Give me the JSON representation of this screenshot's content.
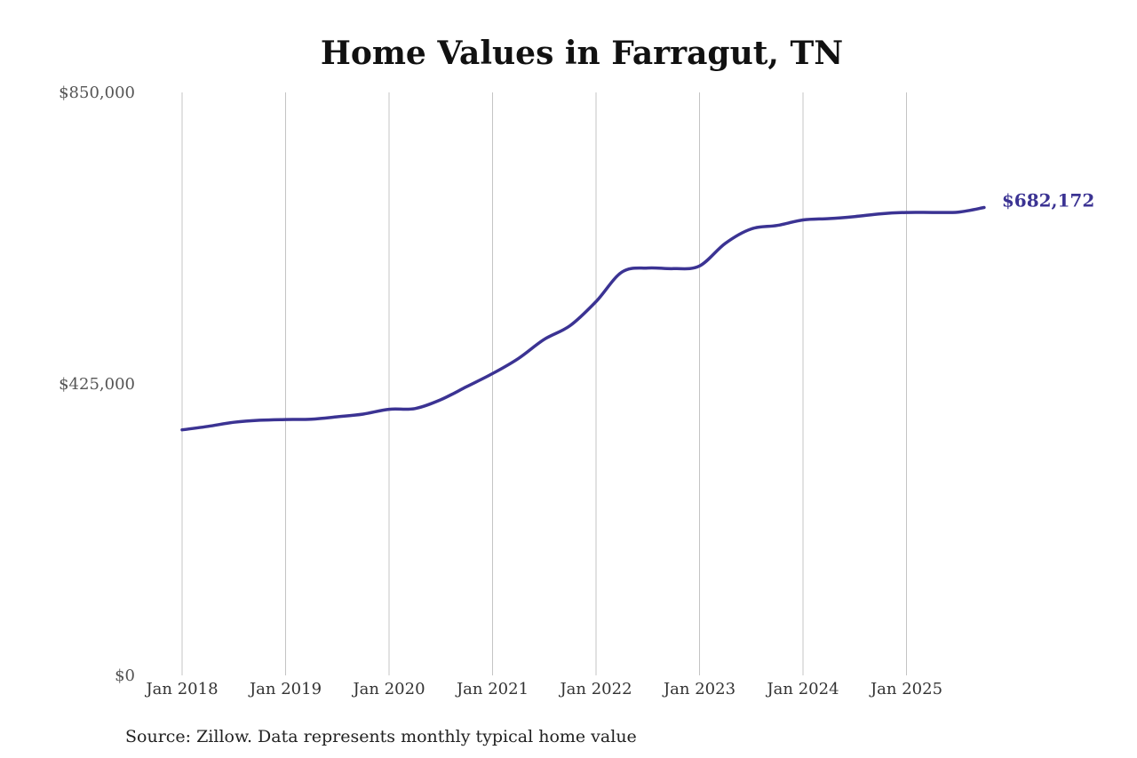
{
  "chart_data": {
    "type": "line",
    "title": "Home Values in Farragut, TN",
    "xlabel": "",
    "ylabel": "",
    "ylim": [
      0,
      850000
    ],
    "yticks": [
      0,
      425000,
      850000
    ],
    "ytick_labels": [
      "$0",
      "$425,000",
      "$850,000"
    ],
    "xlim": [
      "2018-01",
      "2025-10"
    ],
    "xtick_labels": [
      "Jan 2018",
      "Jan 2019",
      "Jan 2020",
      "Jan 2021",
      "Jan 2022",
      "Jan 2023",
      "Jan 2024",
      "Jan 2025"
    ],
    "grid": "vertical",
    "line_color": "#3b3393",
    "end_label": "$682,172",
    "series": [
      {
        "x": [
          "2018-01",
          "2018-04",
          "2018-07",
          "2018-10",
          "2019-01",
          "2019-04",
          "2019-07",
          "2019-10",
          "2020-01",
          "2020-04",
          "2020-07",
          "2020-10",
          "2021-01",
          "2021-04",
          "2021-07",
          "2021-10",
          "2022-01",
          "2022-04",
          "2022-07",
          "2022-10",
          "2023-01",
          "2023-04",
          "2023-07",
          "2023-10",
          "2024-01",
          "2024-04",
          "2024-07",
          "2024-10",
          "2025-01",
          "2025-04",
          "2025-07",
          "2025-10"
        ],
        "values": [
          358000,
          363000,
          369000,
          372000,
          373000,
          373500,
          377000,
          381000,
          388000,
          389000,
          402000,
          421000,
          440000,
          462000,
          490000,
          510000,
          545000,
          588000,
          594000,
          593000,
          597000,
          630000,
          651000,
          656000,
          664000,
          666000,
          669000,
          673000,
          675000,
          675000,
          675500,
          682172
        ]
      }
    ]
  },
  "source": "Source: Zillow. Data represents monthly typical home value"
}
